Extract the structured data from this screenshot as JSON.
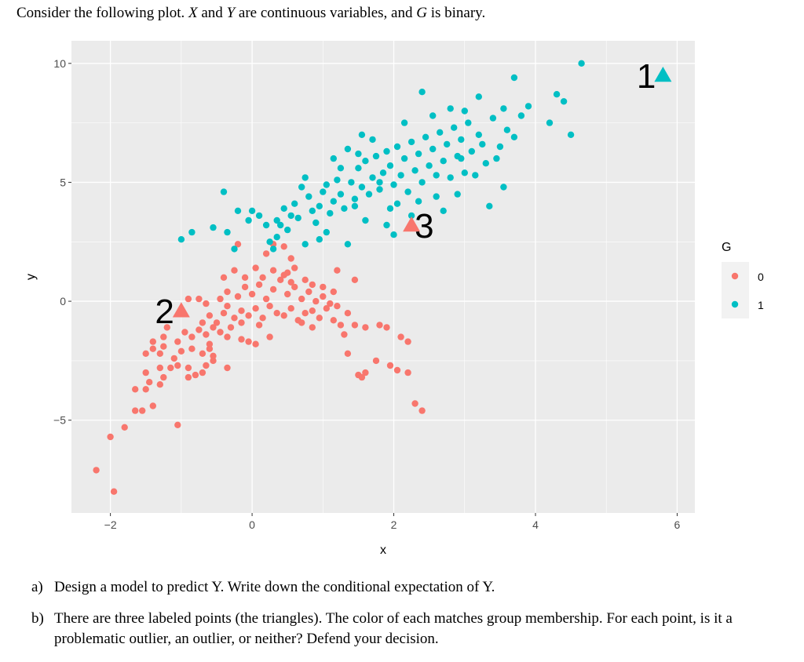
{
  "intro": {
    "part1": "Consider the following plot. ",
    "X": "X",
    "part2": " and ",
    "Y": "Y",
    "part3": " are continuous variables, and ",
    "G": "G",
    "part4": " is binary."
  },
  "questions": [
    {
      "label": "a)",
      "text": "Design a model to predict Y. Write down the conditional expectation of Y."
    },
    {
      "label": "b)",
      "text": "There are three labeled points (the triangles). The color of each matches group membership. For each point, is it a problematic outlier, an outlier, or neither? Defend your decision."
    }
  ],
  "chart_data": {
    "type": "scatter",
    "title": "",
    "xlabel": "x",
    "ylabel": "y",
    "xlim": [
      -2.55,
      6.25
    ],
    "ylim": [
      -8.9,
      10.95
    ],
    "x_ticks": [
      -2,
      0,
      2,
      4,
      6
    ],
    "y_ticks": [
      -5,
      0,
      5,
      10
    ],
    "x_tick_labels": [
      "−2",
      "0",
      "2",
      "4",
      "6"
    ],
    "y_tick_labels": [
      "−5",
      "0",
      "5",
      "10"
    ],
    "grid": true,
    "legend": {
      "title": "G",
      "position": "right",
      "entries": [
        "0",
        "1"
      ]
    },
    "colors": {
      "0": "#F8766D",
      "1": "#00BFC4",
      "panel": "#EBEBEB",
      "grid": "#FFFFFF"
    },
    "series": [
      {
        "name": "0",
        "points": [
          [
            -2.2,
            -7.1
          ],
          [
            -1.95,
            -8.0
          ],
          [
            -2.0,
            -5.7
          ],
          [
            -1.8,
            -5.3
          ],
          [
            -1.65,
            -4.6
          ],
          [
            -1.55,
            -4.6
          ],
          [
            -1.4,
            -4.4
          ],
          [
            -1.05,
            -5.2
          ],
          [
            -1.65,
            -3.7
          ],
          [
            -1.5,
            -3.7
          ],
          [
            -1.45,
            -3.4
          ],
          [
            -1.3,
            -3.5
          ],
          [
            -1.25,
            -3.2
          ],
          [
            -1.5,
            -3.0
          ],
          [
            -1.3,
            -2.8
          ],
          [
            -1.15,
            -2.8
          ],
          [
            -1.05,
            -2.7
          ],
          [
            -0.9,
            -3.2
          ],
          [
            -0.8,
            -3.1
          ],
          [
            -0.7,
            -3.0
          ],
          [
            -0.65,
            -2.7
          ],
          [
            -0.55,
            -2.5
          ],
          [
            -0.35,
            -2.8
          ],
          [
            -0.9,
            -2.8
          ],
          [
            -1.5,
            -2.2
          ],
          [
            -1.4,
            -2.0
          ],
          [
            -1.3,
            -2.2
          ],
          [
            -1.25,
            -1.9
          ],
          [
            -1.1,
            -2.4
          ],
          [
            -1.0,
            -2.1
          ],
          [
            -0.85,
            -2.0
          ],
          [
            -0.7,
            -2.2
          ],
          [
            -0.6,
            -2.0
          ],
          [
            -0.55,
            -2.3
          ],
          [
            -1.4,
            -1.7
          ],
          [
            -1.25,
            -1.5
          ],
          [
            -1.05,
            -1.7
          ],
          [
            -0.95,
            -1.3
          ],
          [
            -0.85,
            -1.5
          ],
          [
            -0.75,
            -1.2
          ],
          [
            -0.65,
            -1.4
          ],
          [
            -0.55,
            -1.1
          ],
          [
            -0.45,
            -1.3
          ],
          [
            -0.35,
            -1.5
          ],
          [
            -0.3,
            -1.1
          ],
          [
            -0.15,
            -1.6
          ],
          [
            -0.05,
            -1.7
          ],
          [
            0.05,
            -1.8
          ],
          [
            -0.7,
            -0.9
          ],
          [
            -0.6,
            -0.6
          ],
          [
            -0.5,
            -0.9
          ],
          [
            -0.4,
            -0.5
          ],
          [
            -0.35,
            -0.2
          ],
          [
            -0.25,
            -0.7
          ],
          [
            -0.15,
            -0.4
          ],
          [
            -0.05,
            -0.6
          ],
          [
            0.05,
            -0.3
          ],
          [
            0.15,
            -0.7
          ],
          [
            0.25,
            -0.2
          ],
          [
            0.35,
            -0.5
          ],
          [
            0.45,
            -0.6
          ],
          [
            0.55,
            -0.3
          ],
          [
            0.65,
            -0.8
          ],
          [
            0.75,
            -0.5
          ],
          [
            0.85,
            -0.4
          ],
          [
            0.95,
            -0.7
          ],
          [
            1.05,
            -0.3
          ],
          [
            1.15,
            -0.8
          ],
          [
            1.25,
            -1.0
          ],
          [
            -0.9,
            0.1
          ],
          [
            -0.75,
            0.1
          ],
          [
            -0.65,
            -0.1
          ],
          [
            -0.45,
            0.1
          ],
          [
            -0.35,
            0.4
          ],
          [
            -0.2,
            0.2
          ],
          [
            -0.1,
            0.6
          ],
          [
            0.0,
            0.3
          ],
          [
            0.1,
            0.7
          ],
          [
            0.2,
            0.1
          ],
          [
            0.3,
            0.5
          ],
          [
            0.4,
            0.9
          ],
          [
            0.5,
            0.3
          ],
          [
            0.6,
            0.6
          ],
          [
            0.7,
            0.1
          ],
          [
            0.8,
            0.4
          ],
          [
            0.9,
            0.0
          ],
          [
            1.0,
            0.2
          ],
          [
            1.1,
            -0.1
          ],
          [
            1.2,
            -0.2
          ],
          [
            -0.4,
            1.0
          ],
          [
            -0.25,
            1.3
          ],
          [
            -0.1,
            1.0
          ],
          [
            0.05,
            1.4
          ],
          [
            0.15,
            1.0
          ],
          [
            0.3,
            1.3
          ],
          [
            0.45,
            1.1
          ],
          [
            0.6,
            1.4
          ],
          [
            0.75,
            0.9
          ],
          [
            0.85,
            0.7
          ],
          [
            1.0,
            0.6
          ],
          [
            1.15,
            0.4
          ],
          [
            1.2,
            1.3
          ],
          [
            -0.2,
            2.4
          ],
          [
            0.2,
            2.0
          ],
          [
            0.3,
            2.4
          ],
          [
            0.5,
            1.2
          ],
          [
            0.55,
            1.8
          ],
          [
            0.45,
            2.3
          ],
          [
            1.45,
            0.9
          ],
          [
            1.3,
            -1.4
          ],
          [
            1.35,
            -2.2
          ],
          [
            1.45,
            -1.0
          ],
          [
            1.5,
            -3.1
          ],
          [
            1.55,
            -3.2
          ],
          [
            1.6,
            -3.0
          ],
          [
            1.75,
            -2.5
          ],
          [
            1.95,
            -2.7
          ],
          [
            2.05,
            -2.9
          ],
          [
            2.2,
            -3.0
          ],
          [
            2.1,
            -1.5
          ],
          [
            2.2,
            -1.7
          ],
          [
            1.6,
            -1.1
          ],
          [
            1.8,
            -1.0
          ],
          [
            1.9,
            -1.1
          ],
          [
            2.3,
            -4.3
          ],
          [
            2.4,
            -4.6
          ],
          [
            0.55,
            0.8
          ],
          [
            0.7,
            -0.9
          ],
          [
            1.35,
            -0.5
          ],
          [
            0.1,
            -1.0
          ],
          [
            -0.6,
            -1.8
          ],
          [
            -1.2,
            -1.1
          ],
          [
            0.25,
            -1.5
          ],
          [
            -0.15,
            -0.9
          ],
          [
            0.85,
            -1.1
          ]
        ]
      },
      {
        "name": "1",
        "points": [
          [
            -1.0,
            2.6
          ],
          [
            -0.85,
            2.9
          ],
          [
            -0.55,
            3.1
          ],
          [
            -0.35,
            2.9
          ],
          [
            -0.25,
            2.2
          ],
          [
            -0.2,
            3.8
          ],
          [
            -0.05,
            3.4
          ],
          [
            0.0,
            3.8
          ],
          [
            0.1,
            3.6
          ],
          [
            0.2,
            3.2
          ],
          [
            0.25,
            2.5
          ],
          [
            0.3,
            2.2
          ],
          [
            0.35,
            2.7
          ],
          [
            0.4,
            3.2
          ],
          [
            -0.4,
            4.6
          ],
          [
            0.45,
            3.9
          ],
          [
            0.55,
            3.6
          ],
          [
            0.6,
            4.1
          ],
          [
            0.65,
            3.5
          ],
          [
            0.7,
            4.8
          ],
          [
            0.75,
            5.2
          ],
          [
            0.8,
            4.4
          ],
          [
            0.85,
            3.8
          ],
          [
            0.9,
            3.3
          ],
          [
            0.95,
            4.0
          ],
          [
            1.0,
            4.6
          ],
          [
            1.05,
            4.9
          ],
          [
            1.1,
            3.7
          ],
          [
            1.15,
            4.2
          ],
          [
            1.2,
            5.1
          ],
          [
            1.25,
            4.5
          ],
          [
            1.3,
            3.9
          ],
          [
            1.35,
            2.4
          ],
          [
            1.4,
            5.0
          ],
          [
            1.45,
            4.3
          ],
          [
            1.5,
            5.6
          ],
          [
            1.55,
            4.8
          ],
          [
            1.6,
            5.9
          ],
          [
            1.65,
            4.5
          ],
          [
            1.7,
            5.2
          ],
          [
            1.75,
            6.1
          ],
          [
            1.8,
            4.7
          ],
          [
            1.85,
            5.4
          ],
          [
            1.9,
            6.3
          ],
          [
            1.95,
            5.7
          ],
          [
            2.0,
            4.9
          ],
          [
            2.05,
            6.5
          ],
          [
            2.1,
            5.3
          ],
          [
            2.15,
            6.0
          ],
          [
            2.2,
            4.6
          ],
          [
            2.25,
            6.7
          ],
          [
            2.3,
            5.5
          ],
          [
            2.35,
            6.2
          ],
          [
            2.4,
            5.0
          ],
          [
            2.45,
            6.9
          ],
          [
            2.5,
            5.7
          ],
          [
            2.55,
            6.4
          ],
          [
            2.6,
            4.4
          ],
          [
            2.65,
            7.1
          ],
          [
            2.7,
            5.9
          ],
          [
            2.75,
            6.6
          ],
          [
            2.8,
            5.2
          ],
          [
            2.85,
            7.3
          ],
          [
            2.9,
            6.1
          ],
          [
            2.95,
            6.8
          ],
          [
            3.0,
            5.4
          ],
          [
            3.05,
            7.5
          ],
          [
            3.1,
            6.3
          ],
          [
            3.2,
            7.0
          ],
          [
            3.3,
            5.8
          ],
          [
            3.4,
            7.7
          ],
          [
            3.5,
            6.5
          ],
          [
            3.6,
            7.2
          ],
          [
            3.7,
            6.9
          ],
          [
            3.8,
            7.8
          ],
          [
            3.9,
            8.2
          ],
          [
            4.2,
            7.5
          ],
          [
            4.3,
            8.7
          ],
          [
            4.4,
            8.4
          ],
          [
            4.5,
            7.0
          ],
          [
            4.65,
            10.0
          ],
          [
            3.7,
            9.4
          ],
          [
            3.55,
            8.1
          ],
          [
            3.2,
            8.6
          ],
          [
            2.8,
            8.1
          ],
          [
            2.4,
            8.8
          ],
          [
            2.15,
            7.5
          ],
          [
            1.55,
            7.0
          ],
          [
            1.25,
            5.6
          ],
          [
            1.9,
            3.2
          ],
          [
            2.0,
            2.8
          ],
          [
            2.25,
            3.6
          ],
          [
            3.35,
            4.0
          ],
          [
            3.55,
            4.8
          ],
          [
            0.75,
            2.4
          ],
          [
            1.05,
            2.9
          ],
          [
            1.6,
            3.4
          ],
          [
            1.35,
            6.4
          ],
          [
            1.7,
            6.8
          ],
          [
            2.55,
            7.8
          ],
          [
            3.0,
            8.0
          ],
          [
            2.7,
            3.8
          ],
          [
            1.5,
            6.2
          ],
          [
            2.05,
            4.1
          ],
          [
            2.9,
            4.5
          ],
          [
            3.45,
            6.0
          ],
          [
            1.15,
            6.0
          ],
          [
            2.35,
            4.2
          ],
          [
            3.15,
            5.3
          ],
          [
            0.5,
            3.0
          ],
          [
            0.95,
            2.6
          ],
          [
            1.8,
            5.0
          ],
          [
            2.6,
            5.3
          ],
          [
            3.25,
            6.6
          ],
          [
            1.45,
            4.0
          ],
          [
            2.95,
            6.0
          ],
          [
            1.95,
            3.9
          ],
          [
            0.35,
            3.4
          ]
        ]
      }
    ],
    "labeled_points": [
      {
        "label": "1",
        "x": 5.8,
        "y": 9.5,
        "group": "1"
      },
      {
        "label": "2",
        "x": -1.0,
        "y": -0.4,
        "group": "0"
      },
      {
        "label": "3",
        "x": 2.25,
        "y": 3.2,
        "group": "0"
      }
    ]
  }
}
